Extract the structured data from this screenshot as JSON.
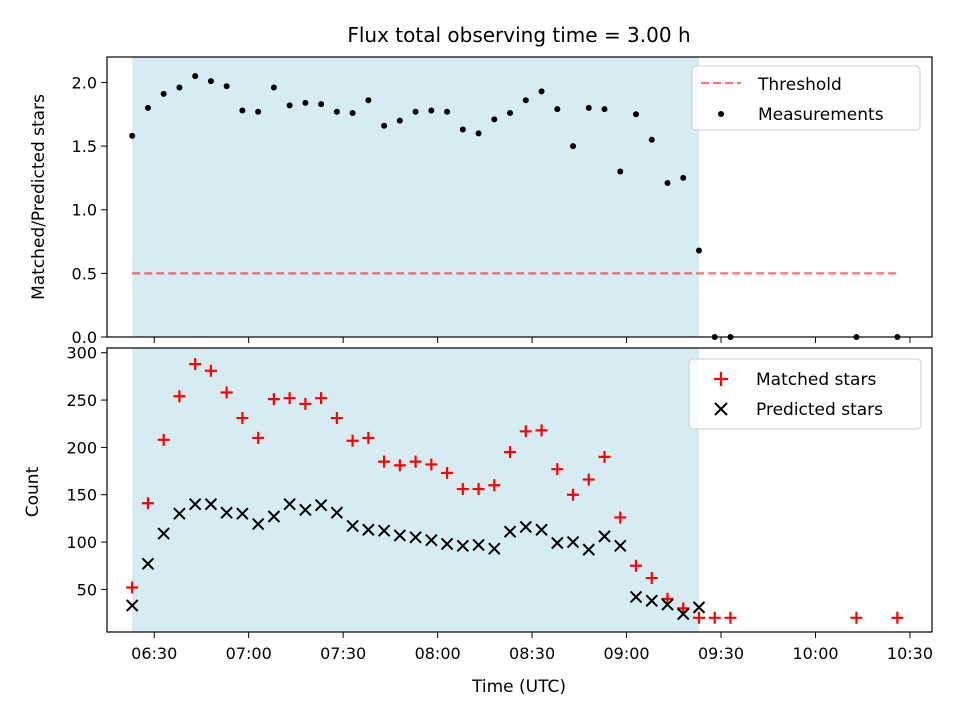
{
  "title": "Flux total observing time = 3.00 h",
  "colors": {
    "span": "#add8e6",
    "threshold": "#ff0000",
    "measurement": "#000000",
    "matched": "#ff0000",
    "predicted": "#000000"
  },
  "chart_data": [
    {
      "type": "scatter",
      "ylabel": "Matched/Predicted stars",
      "xlim": [
        "06:15",
        "10:37"
      ],
      "ylim": [
        0,
        2.2
      ],
      "yticks": [
        "0.0",
        "0.5",
        "1.0",
        "1.5",
        "2.0"
      ],
      "shaded_span": [
        "06:23",
        "09:23"
      ],
      "legend": [
        "Threshold",
        "Measurements"
      ],
      "legend_position": "top-right",
      "threshold": {
        "name": "Threshold",
        "y": 0.5,
        "x": [
          "06:23",
          "10:26"
        ]
      },
      "series": [
        {
          "name": "Measurements",
          "x": [
            "06:23",
            "06:28",
            "06:33",
            "06:38",
            "06:43",
            "06:48",
            "06:53",
            "06:58",
            "07:03",
            "07:08",
            "07:13",
            "07:18",
            "07:23",
            "07:28",
            "07:33",
            "07:38",
            "07:43",
            "07:48",
            "07:53",
            "07:58",
            "08:03",
            "08:08",
            "08:13",
            "08:18",
            "08:23",
            "08:28",
            "08:33",
            "08:38",
            "08:43",
            "08:48",
            "08:53",
            "08:58",
            "09:03",
            "09:08",
            "09:13",
            "09:18",
            "09:23",
            "09:28",
            "09:33",
            "10:13",
            "10:26"
          ],
          "y": [
            1.58,
            1.8,
            1.91,
            1.96,
            2.05,
            2.01,
            1.97,
            1.78,
            1.77,
            1.96,
            1.82,
            1.84,
            1.83,
            1.77,
            1.76,
            1.86,
            1.66,
            1.7,
            1.77,
            1.78,
            1.77,
            1.63,
            1.6,
            1.71,
            1.76,
            1.86,
            1.93,
            1.79,
            1.5,
            1.8,
            1.79,
            1.3,
            1.75,
            1.55,
            1.21,
            1.25,
            0.68,
            0.0,
            0.0,
            0.0,
            0.0
          ]
        }
      ]
    },
    {
      "type": "scatter",
      "xlabel": "Time (UTC)",
      "ylabel": "Count",
      "xlim": [
        "06:15",
        "10:37"
      ],
      "ylim": [
        5,
        305
      ],
      "yticks": [
        "50",
        "100",
        "150",
        "200",
        "250",
        "300"
      ],
      "xticks": [
        "06:30",
        "07:00",
        "07:30",
        "08:00",
        "08:30",
        "09:00",
        "09:30",
        "10:00",
        "10:30"
      ],
      "shaded_span": [
        "06:23",
        "09:23"
      ],
      "legend": [
        "Matched stars",
        "Predicted stars"
      ],
      "legend_position": "top-right",
      "series": [
        {
          "name": "Matched stars",
          "marker": "plus",
          "x": [
            "06:23",
            "06:28",
            "06:33",
            "06:38",
            "06:43",
            "06:48",
            "06:53",
            "06:58",
            "07:03",
            "07:08",
            "07:13",
            "07:18",
            "07:23",
            "07:28",
            "07:33",
            "07:38",
            "07:43",
            "07:48",
            "07:53",
            "07:58",
            "08:03",
            "08:08",
            "08:13",
            "08:18",
            "08:23",
            "08:28",
            "08:33",
            "08:38",
            "08:43",
            "08:48",
            "08:53",
            "08:58",
            "09:03",
            "09:08",
            "09:13",
            "09:18",
            "09:23",
            "09:28",
            "09:33",
            "10:13",
            "10:26"
          ],
          "y": [
            52,
            141,
            208,
            254,
            288,
            281,
            258,
            231,
            210,
            251,
            252,
            246,
            252,
            231,
            207,
            210,
            185,
            181,
            185,
            182,
            173,
            156,
            156,
            160,
            195,
            217,
            218,
            177,
            150,
            166,
            190,
            126,
            75,
            62,
            40,
            30,
            20,
            20,
            20,
            20,
            20
          ]
        },
        {
          "name": "Predicted stars",
          "marker": "x",
          "x": [
            "06:23",
            "06:28",
            "06:33",
            "06:38",
            "06:43",
            "06:48",
            "06:53",
            "06:58",
            "07:03",
            "07:08",
            "07:13",
            "07:18",
            "07:23",
            "07:28",
            "07:33",
            "07:38",
            "07:43",
            "07:48",
            "07:53",
            "07:58",
            "08:03",
            "08:08",
            "08:13",
            "08:18",
            "08:23",
            "08:28",
            "08:33",
            "08:38",
            "08:43",
            "08:48",
            "08:53",
            "08:58",
            "09:03",
            "09:08",
            "09:13",
            "09:18",
            "09:23"
          ],
          "y": [
            33,
            77,
            109,
            130,
            140,
            140,
            131,
            130,
            119,
            127,
            140,
            134,
            139,
            131,
            117,
            113,
            112,
            107,
            105,
            102,
            98,
            96,
            97,
            93,
            111,
            116,
            113,
            99,
            100,
            92,
            106,
            96,
            42,
            38,
            34,
            24,
            31
          ]
        }
      ]
    }
  ]
}
